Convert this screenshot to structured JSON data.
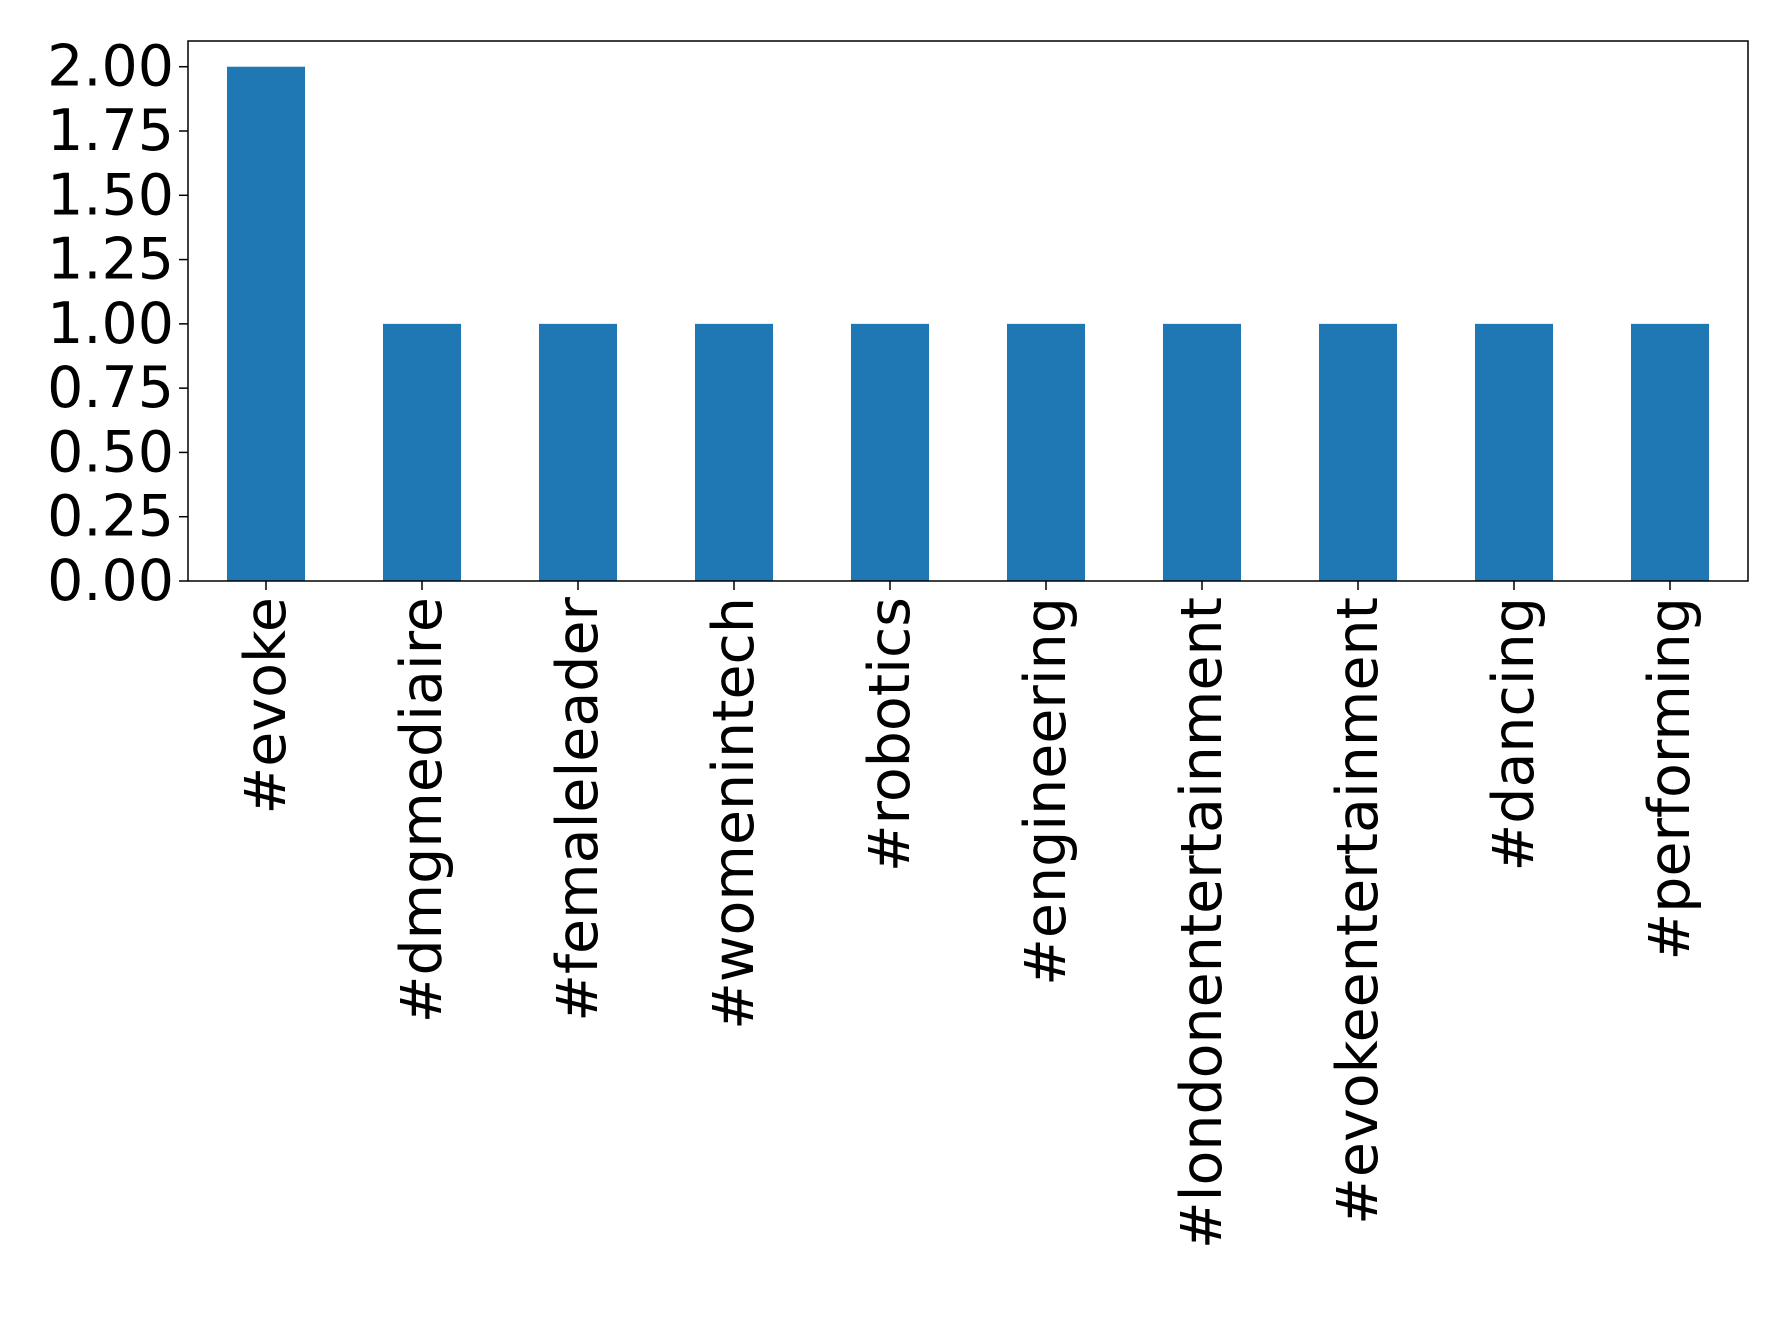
{
  "chart_data": {
    "type": "bar",
    "categories": [
      "#evoke",
      "#dmgmediaire",
      "#femaleleader",
      "#womenintech",
      "#robotics",
      "#engineering",
      "#londonentertainment",
      "#evokeentertainment",
      "#dancing",
      "#performing"
    ],
    "values": [
      2,
      1,
      1,
      1,
      1,
      1,
      1,
      1,
      1,
      1
    ],
    "color": "#1f77b4",
    "ylim": [
      0,
      2.1
    ],
    "yticks": [
      {
        "value": 0,
        "label": "0.00"
      },
      0.25,
      {
        "value": 0.5,
        "label": "0.50"
      },
      0.75,
      {
        "value": 1,
        "label": "1.00"
      },
      1.25,
      {
        "value": 1.5,
        "label": "1.50"
      },
      1.75,
      {
        "value": 2,
        "label": "2.00"
      }
    ],
    "grid": false
  }
}
